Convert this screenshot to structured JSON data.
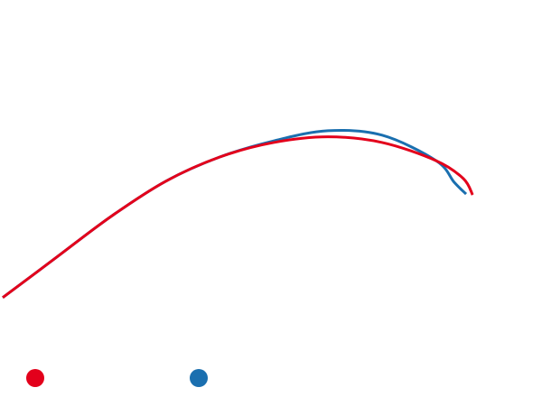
{
  "chart_data": {
    "type": "line",
    "title": "",
    "xlabel": "",
    "ylabel": "",
    "xlim": [
      0,
      100
    ],
    "ylim": [
      0,
      100
    ],
    "grid": false,
    "axes_visible": false,
    "legend": "bottom-left",
    "series": [
      {
        "color": "#e3001b",
        "points": [
          [
            0,
            26.7
          ],
          [
            10,
            36.7
          ],
          [
            20,
            46.7
          ],
          [
            30,
            55.3
          ],
          [
            40,
            61.3
          ],
          [
            50,
            64.9
          ],
          [
            60,
            66.3
          ],
          [
            70,
            64.9
          ],
          [
            80,
            60.4
          ],
          [
            85,
            56.0
          ],
          [
            86.7,
            52.0
          ]
        ]
      },
      {
        "color": "#1a6faf",
        "points": [
          [
            0,
            26.7
          ],
          [
            10,
            36.7
          ],
          [
            20,
            46.7
          ],
          [
            30,
            55.3
          ],
          [
            40,
            61.3
          ],
          [
            50,
            65.3
          ],
          [
            60,
            67.8
          ],
          [
            70,
            66.7
          ],
          [
            80,
            60.4
          ],
          [
            83.3,
            55.1
          ],
          [
            85.5,
            52.2
          ]
        ]
      }
    ],
    "markers": [
      "#e3001b",
      "#1a6faf"
    ]
  }
}
